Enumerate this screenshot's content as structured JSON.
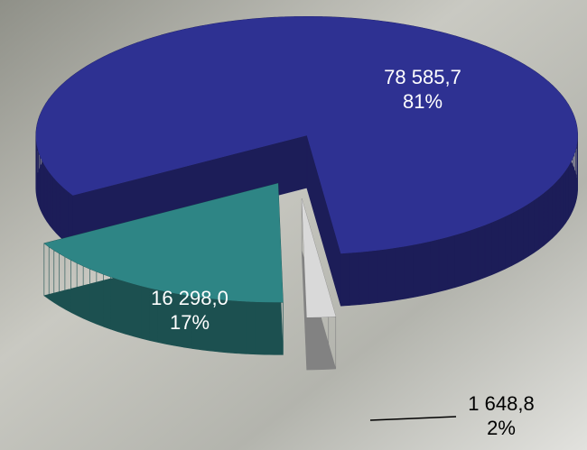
{
  "chart_data": {
    "type": "pie",
    "categories": [
      null,
      null,
      null
    ],
    "values": [
      78585.7,
      16298.0,
      1648.8
    ],
    "value_labels": [
      "78 585,7",
      "16 298,0",
      "1 648,8"
    ],
    "percent_labels": [
      "81%",
      "17%",
      "2%"
    ],
    "colors": [
      "#2e3192",
      "#2e8585",
      "#d9d9d9"
    ]
  }
}
